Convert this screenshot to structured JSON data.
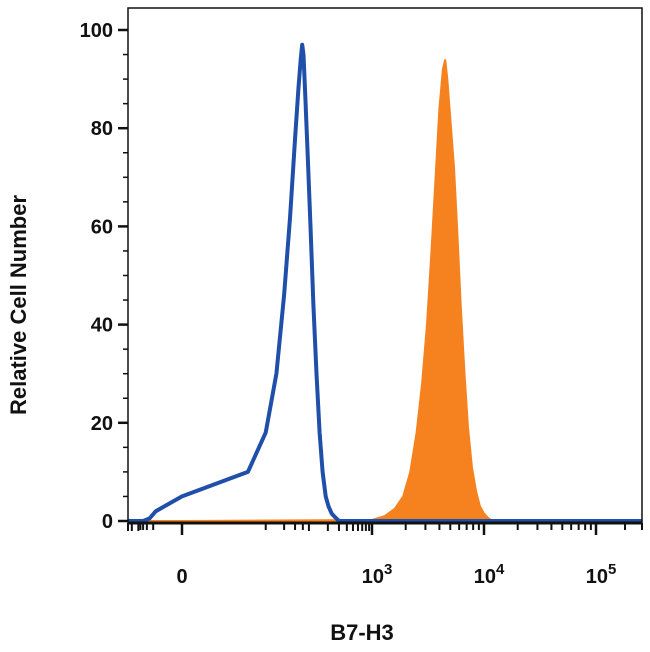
{
  "chart_data": {
    "type": "area",
    "title": "",
    "xlabel": "B7-H3",
    "ylabel": "Relative Cell Number",
    "x_scale": "biexponential",
    "x_tick_labels": [
      {
        "value": 0,
        "base": "0",
        "exp": ""
      },
      {
        "value": 1000,
        "base": "10",
        "exp": "3"
      },
      {
        "value": 10000,
        "base": "10",
        "exp": "4"
      },
      {
        "value": 100000,
        "base": "10",
        "exp": "5"
      }
    ],
    "ylim": [
      0,
      100
    ],
    "y_ticks": [
      0,
      20,
      40,
      60,
      80,
      100
    ],
    "grid": false,
    "legend": "none",
    "series": [
      {
        "style": "outline",
        "color": "#1f4fa8",
        "points": [
          [
            -60,
            0
          ],
          [
            -30,
            0.5
          ],
          [
            -15,
            2
          ],
          [
            0,
            5
          ],
          [
            10,
            10
          ],
          [
            20,
            18
          ],
          [
            30,
            30
          ],
          [
            40,
            46
          ],
          [
            50,
            62
          ],
          [
            60,
            78
          ],
          [
            68,
            88
          ],
          [
            74,
            94
          ],
          [
            78,
            97
          ],
          [
            82,
            95
          ],
          [
            88,
            86
          ],
          [
            96,
            74
          ],
          [
            106,
            60
          ],
          [
            118,
            44
          ],
          [
            132,
            30
          ],
          [
            148,
            18
          ],
          [
            165,
            10
          ],
          [
            185,
            5
          ],
          [
            205,
            3
          ],
          [
            230,
            1.5
          ],
          [
            260,
            0.8
          ],
          [
            300,
            0
          ]
        ]
      },
      {
        "style": "filled",
        "color": "#f5821f",
        "points": [
          [
            0,
            0
          ],
          [
            1000,
            0.2
          ],
          [
            1300,
            1
          ],
          [
            1600,
            2.5
          ],
          [
            1900,
            5
          ],
          [
            2200,
            10
          ],
          [
            2500,
            18
          ],
          [
            2800,
            28
          ],
          [
            3100,
            40
          ],
          [
            3400,
            55
          ],
          [
            3700,
            70
          ],
          [
            4000,
            84
          ],
          [
            4300,
            92
          ],
          [
            4500,
            94
          ],
          [
            4700,
            90
          ],
          [
            5000,
            82
          ],
          [
            5400,
            72
          ],
          [
            5800,
            58
          ],
          [
            6200,
            44
          ],
          [
            6700,
            30
          ],
          [
            7200,
            19
          ],
          [
            7800,
            11
          ],
          [
            8500,
            6
          ],
          [
            9200,
            3
          ],
          [
            10000,
            1.5
          ],
          [
            11000,
            0.5
          ],
          [
            12000,
            0
          ]
        ]
      }
    ]
  }
}
